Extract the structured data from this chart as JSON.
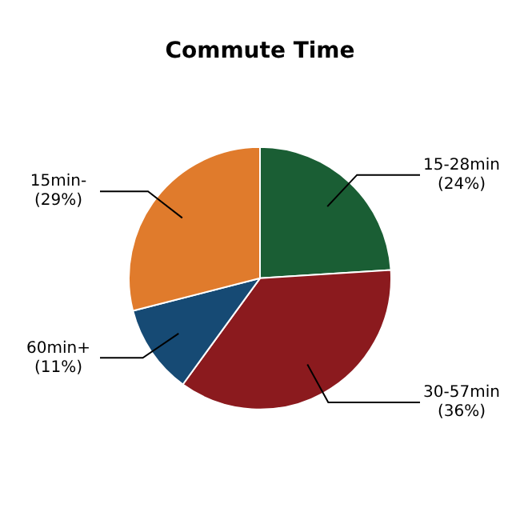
{
  "chart_data": {
    "type": "pie",
    "title": "Commute Time",
    "categories": [
      "15-28min",
      "30-57min",
      "60min+",
      "15min-"
    ],
    "values": [
      24,
      36,
      11,
      29
    ],
    "colors": [
      "#1a5e34",
      "#8b1a1e",
      "#164a74",
      "#e07b2c"
    ],
    "value_labels": [
      "(24%)",
      "(36%)",
      "(11%)",
      "(29%)"
    ],
    "legend": false
  }
}
